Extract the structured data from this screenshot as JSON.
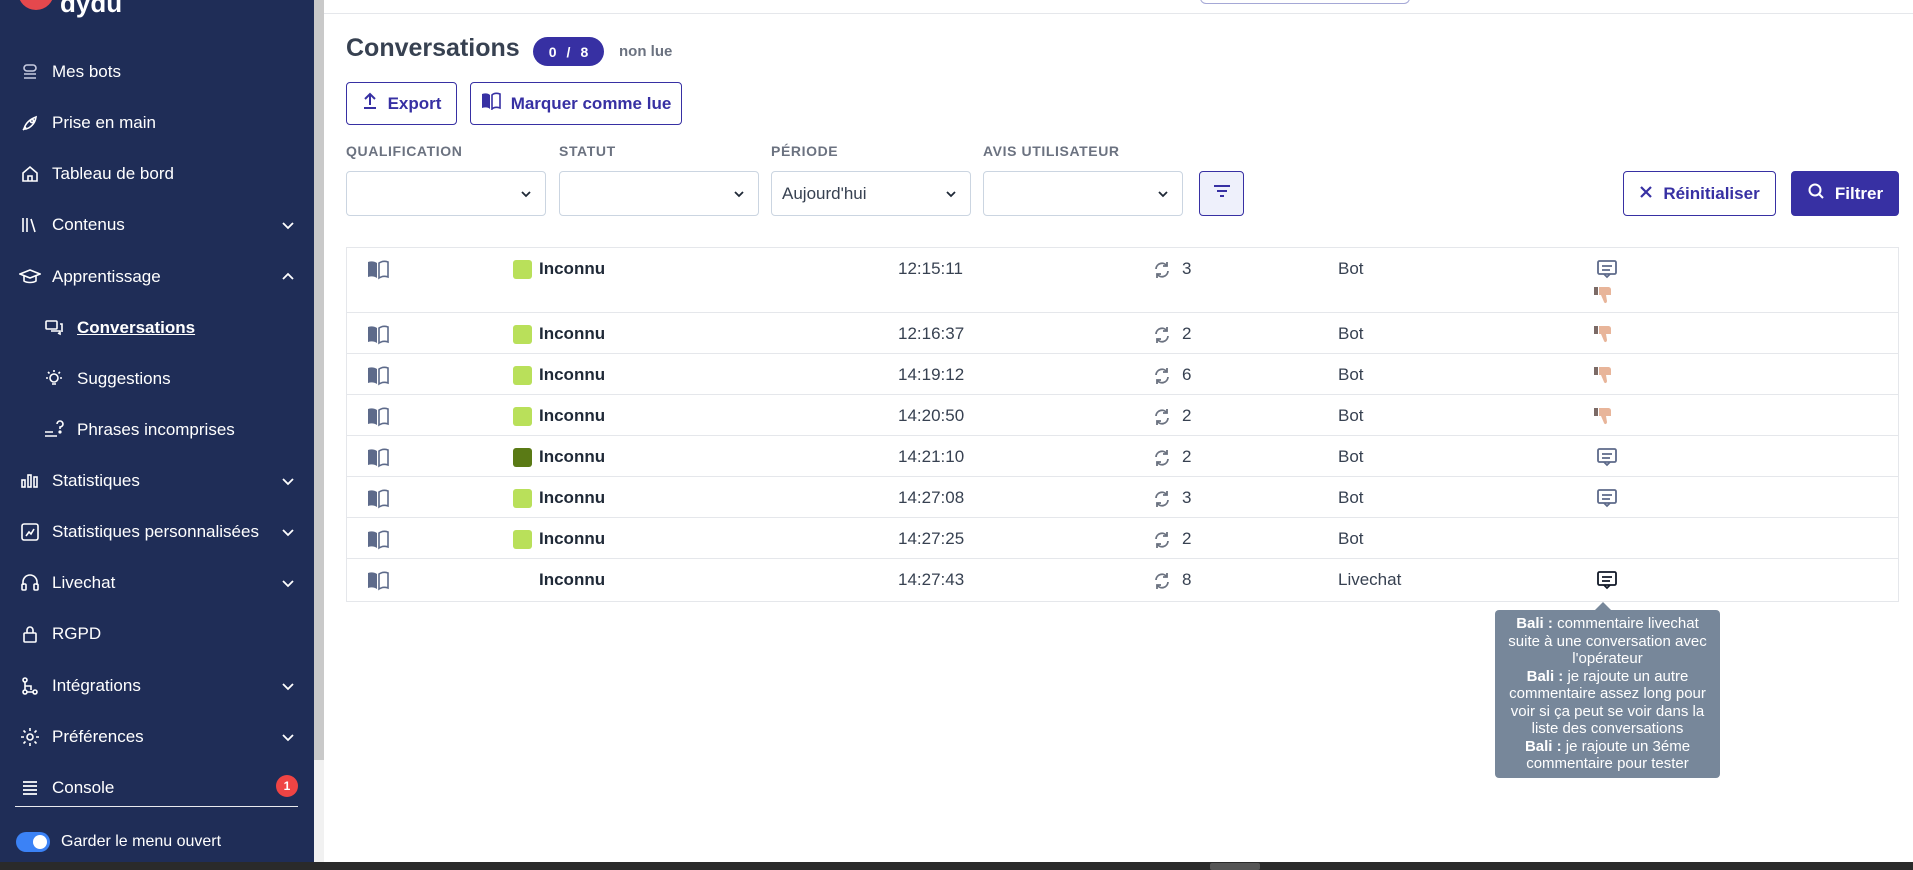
{
  "brand": {
    "name": "dydu"
  },
  "sidebar": {
    "items": [
      {
        "label": "Mes bots",
        "icon": "bots-icon"
      },
      {
        "label": "Prise en main",
        "icon": "rocket-icon"
      },
      {
        "label": "Tableau de bord",
        "icon": "home-icon"
      },
      {
        "label": "Contenus",
        "icon": "books-icon"
      },
      {
        "label": "Apprentissage",
        "icon": "graduation-cap-icon"
      },
      {
        "label": "Conversations",
        "icon": "chat-bubbles-icon"
      },
      {
        "label": "Suggestions",
        "icon": "lightbulb-icon"
      },
      {
        "label": "Phrases incomprises",
        "icon": "unknown-phrases-icon"
      },
      {
        "label": "Statistiques",
        "icon": "bar-chart-icon"
      },
      {
        "label": "Statistiques personnalisées",
        "icon": "custom-chart-icon"
      },
      {
        "label": "Livechat",
        "icon": "headset-icon"
      },
      {
        "label": "RGPD",
        "icon": "lock-icon"
      },
      {
        "label": "Intégrations",
        "icon": "flow-icon"
      },
      {
        "label": "Préférences",
        "icon": "gear-icon"
      },
      {
        "label": "Console",
        "icon": "list-icon",
        "badge": "1"
      }
    ],
    "keep_open_label": "Garder le menu ouvert"
  },
  "header": {
    "title": "Conversations",
    "count_read": "0",
    "count_sep": "/",
    "count_total": "8",
    "unread_label": "non lue"
  },
  "toolbar": {
    "export_label": "Export",
    "mark_read_label": "Marquer comme lue"
  },
  "filters": {
    "qualification": {
      "label": "QUALIFICATION",
      "value": ""
    },
    "statut": {
      "label": "STATUT",
      "value": ""
    },
    "periode": {
      "label": "PÉRIODE",
      "value": "Aujourd'hui"
    },
    "avis": {
      "label": "AVIS UTILISATEUR",
      "value": ""
    },
    "reset_label": "Réinitialiser",
    "filter_label": "Filtrer"
  },
  "colors": {
    "sidebar_bg": "#1f2d57",
    "accent": "#3730a3",
    "qual_light": "#b9e05a",
    "qual_dark": "#5a7a15",
    "thumb": "#e8b59a",
    "tooltip_bg": "#77879a"
  },
  "rows": [
    {
      "name": "Inconnu",
      "time": "12:15:11",
      "turns": "3",
      "type": "Bot",
      "qual": "light",
      "comment": true,
      "thumb": true
    },
    {
      "name": "Inconnu",
      "time": "12:16:37",
      "turns": "2",
      "type": "Bot",
      "qual": "light",
      "comment": false,
      "thumb": true
    },
    {
      "name": "Inconnu",
      "time": "14:19:12",
      "turns": "6",
      "type": "Bot",
      "qual": "light",
      "comment": false,
      "thumb": true
    },
    {
      "name": "Inconnu",
      "time": "14:20:50",
      "turns": "2",
      "type": "Bot",
      "qual": "light",
      "comment": false,
      "thumb": true
    },
    {
      "name": "Inconnu",
      "time": "14:21:10",
      "turns": "2",
      "type": "Bot",
      "qual": "dark",
      "comment": true,
      "thumb": false
    },
    {
      "name": "Inconnu",
      "time": "14:27:08",
      "turns": "3",
      "type": "Bot",
      "qual": "light",
      "comment": true,
      "thumb": false
    },
    {
      "name": "Inconnu",
      "time": "14:27:25",
      "turns": "2",
      "type": "Bot",
      "qual": "light",
      "comment": false,
      "thumb": false
    },
    {
      "name": "Inconnu",
      "time": "14:27:43",
      "turns": "8",
      "type": "Livechat",
      "qual": "none",
      "comment": true,
      "thumb": false
    }
  ],
  "tooltip": {
    "comments": [
      {
        "author": "Bali",
        "sep": " : ",
        "text": "commentaire livechat suite à une conversation avec l'opérateur"
      },
      {
        "author": "Bali",
        "sep": " : ",
        "text": "je rajoute un autre commentaire assez long pour voir si ça peut se voir dans la liste des conversations"
      },
      {
        "author": "Bali",
        "sep": " : ",
        "text": "je rajoute un 3éme commentaire pour tester"
      }
    ]
  }
}
